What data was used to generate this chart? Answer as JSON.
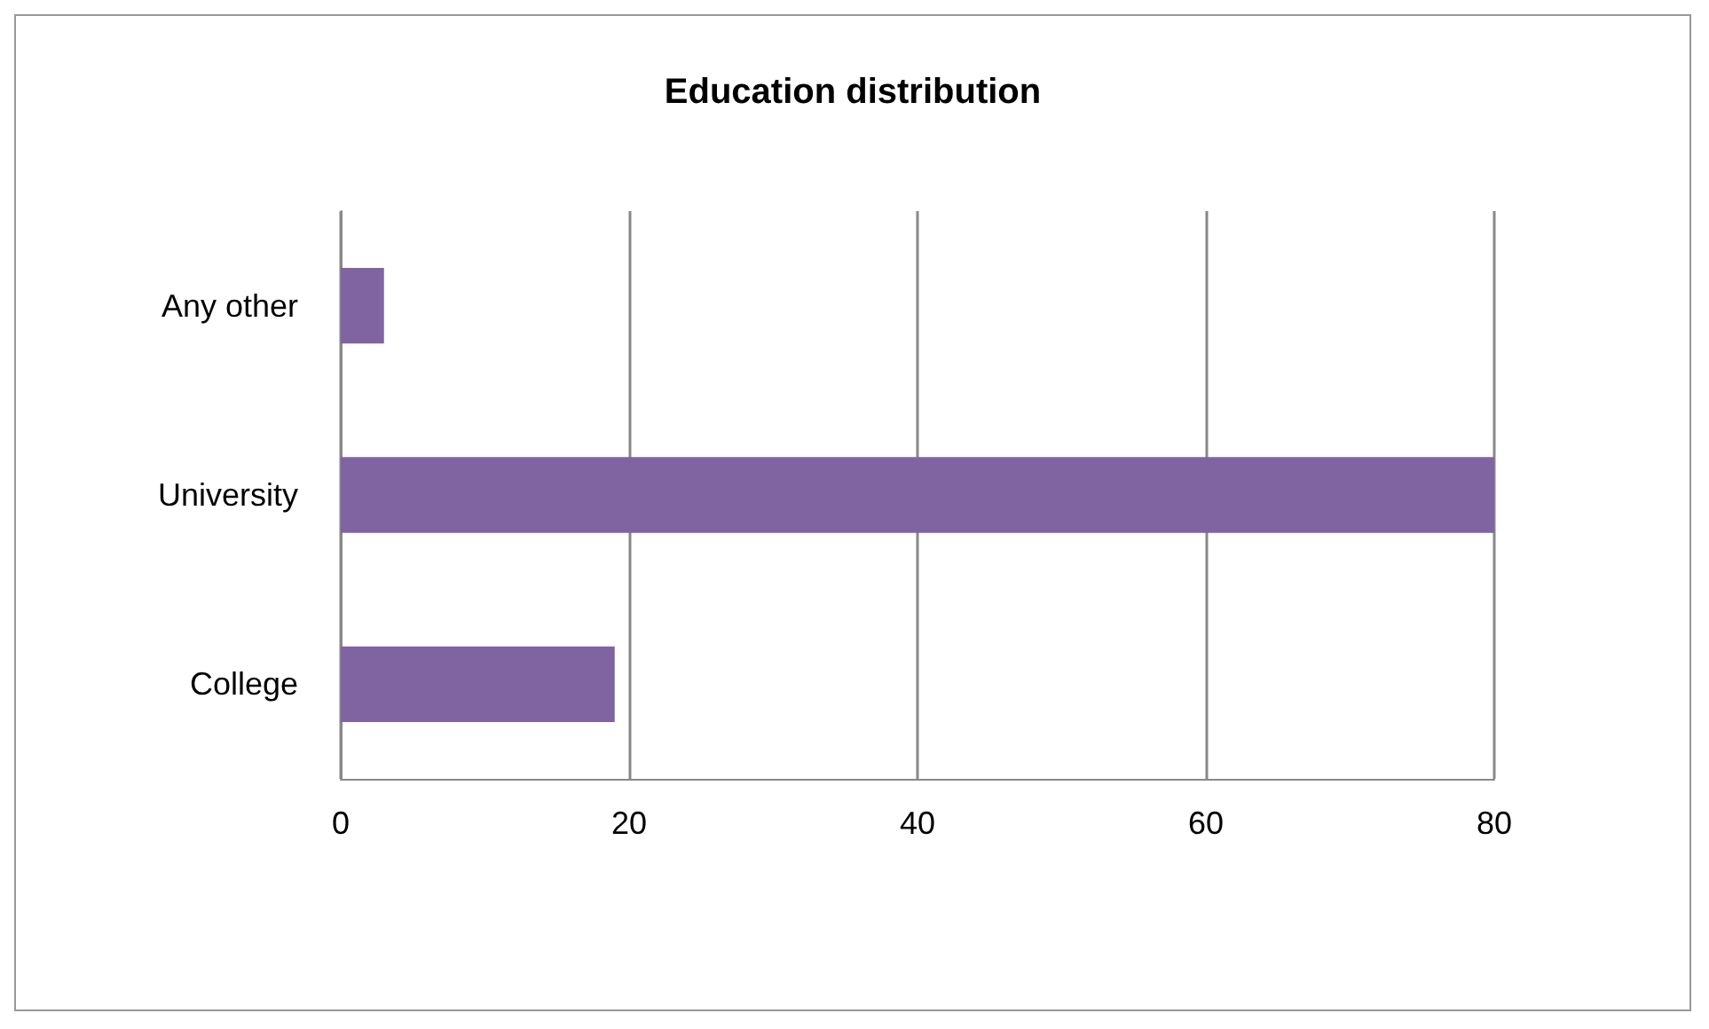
{
  "chart_data": {
    "type": "bar",
    "orientation": "horizontal",
    "title": "Education distribution",
    "categories": [
      "Any other",
      "University",
      "College"
    ],
    "values": [
      3,
      80,
      19
    ],
    "color": "#8064a2",
    "xlim": [
      0,
      80
    ],
    "xticks": [
      0,
      20,
      40,
      60,
      80
    ],
    "grid": "x"
  }
}
